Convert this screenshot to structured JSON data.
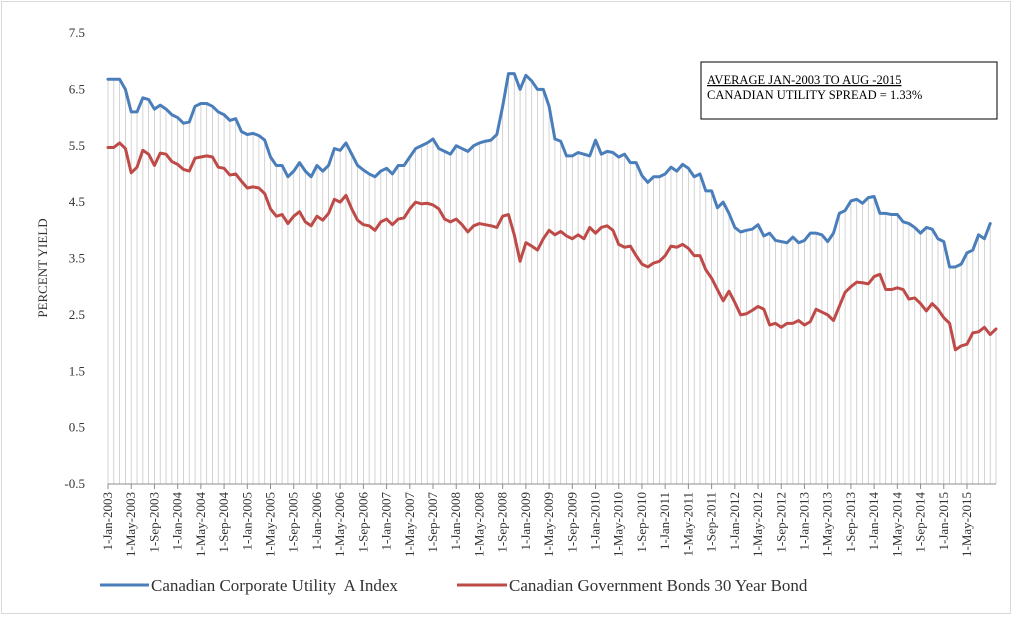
{
  "chart_data": {
    "type": "line",
    "title": "",
    "xlabel": "",
    "ylabel": "PERCENT YIELD",
    "ylim": [
      -0.5,
      7.5
    ],
    "yticks": [
      -0.5,
      0.5,
      1.5,
      2.5,
      3.5,
      4.5,
      5.5,
      6.5,
      7.5
    ],
    "x_start": "2003-01",
    "x_end": "2015-08",
    "x_tick_labels": [
      "1-Jan-2003",
      "1-May-2003",
      "1-Sep-2003",
      "1-Jan-2004",
      "1-May-2004",
      "1-Sep-2004",
      "1-Jan-2005",
      "1-May-2005",
      "1-Sep-2005",
      "1-Jan-2006",
      "1-May-2006",
      "1-Sep-2006",
      "1-Jan-2007",
      "1-May-2007",
      "1-Sep-2007",
      "1-Jan-2008",
      "1-May-2008",
      "1-Sep-2008",
      "1-Jan-2009",
      "1-May-2009",
      "1-Sep-2009",
      "1-Jan-2010",
      "1-May-2010",
      "1-Sep-2010",
      "1-Jan-2011",
      "1-May-2011",
      "1-Sep-2011",
      "1-Jan-2012",
      "1-May-2012",
      "1-Sep-2012",
      "1-Jan-2013",
      "1-May-2013",
      "1-Sep-2013",
      "1-Jan-2014",
      "1-May-2014",
      "1-Sep-2014",
      "1-Jan-2015",
      "1-May-2015"
    ],
    "grid": "vertical monthly drop lines",
    "legend_position": "bottom",
    "annotation": {
      "line1": "AVERAGE JAN-2003 TO AUG -2015",
      "line2": "CANADIAN UTILITY SPREAD = 1.33%"
    },
    "series": [
      {
        "name": "Canadian Corporate Utility  A Index",
        "color": "#4a7ebb",
        "values": [
          6.68,
          6.68,
          6.68,
          6.5,
          6.1,
          6.1,
          6.35,
          6.32,
          6.15,
          6.22,
          6.15,
          6.05,
          6.0,
          5.9,
          5.92,
          6.2,
          6.25,
          6.25,
          6.2,
          6.1,
          6.05,
          5.95,
          5.98,
          5.75,
          5.7,
          5.72,
          5.68,
          5.6,
          5.3,
          5.15,
          5.15,
          4.95,
          5.05,
          5.2,
          5.05,
          4.95,
          5.15,
          5.05,
          5.15,
          5.45,
          5.42,
          5.55,
          5.35,
          5.15,
          5.07,
          5.0,
          4.95,
          5.05,
          5.1,
          5.0,
          5.15,
          5.15,
          5.3,
          5.45,
          5.5,
          5.55,
          5.62,
          5.45,
          5.4,
          5.35,
          5.5,
          5.45,
          5.4,
          5.5,
          5.55,
          5.58,
          5.6,
          5.7,
          6.2,
          6.78,
          6.78,
          6.5,
          6.75,
          6.65,
          6.5,
          6.5,
          6.2,
          5.62,
          5.58,
          5.32,
          5.32,
          5.38,
          5.35,
          5.32,
          5.6,
          5.35,
          5.4,
          5.38,
          5.3,
          5.35,
          5.2,
          5.2,
          4.97,
          4.85,
          4.95,
          4.95,
          5.0,
          5.12,
          5.05,
          5.17,
          5.1,
          4.95,
          5.0,
          4.7,
          4.7,
          4.4,
          4.5,
          4.3,
          4.05,
          3.97,
          4.0,
          4.02,
          4.1,
          3.9,
          3.95,
          3.82,
          3.8,
          3.78,
          3.88,
          3.78,
          3.82,
          3.95,
          3.95,
          3.92,
          3.8,
          3.95,
          4.3,
          4.35,
          4.52,
          4.55,
          4.48,
          4.58,
          4.6,
          4.3,
          4.3,
          4.28,
          4.28,
          4.15,
          4.12,
          4.05,
          3.95,
          4.05,
          4.02,
          3.85,
          3.8,
          3.35,
          3.35,
          3.4,
          3.6,
          3.65,
          3.92,
          3.85,
          4.12
        ]
      },
      {
        "name": "Canadian Government Bonds 30 Year Bond",
        "color": "#be4b48",
        "values": [
          5.47,
          5.47,
          5.55,
          5.45,
          5.02,
          5.12,
          5.42,
          5.35,
          5.15,
          5.37,
          5.35,
          5.22,
          5.17,
          5.08,
          5.05,
          5.28,
          5.3,
          5.32,
          5.3,
          5.12,
          5.1,
          4.98,
          5.0,
          4.87,
          4.75,
          4.77,
          4.75,
          4.65,
          4.38,
          4.25,
          4.28,
          4.12,
          4.25,
          4.33,
          4.15,
          4.08,
          4.25,
          4.18,
          4.3,
          4.55,
          4.5,
          4.62,
          4.38,
          4.18,
          4.1,
          4.08,
          4.0,
          4.15,
          4.2,
          4.1,
          4.2,
          4.22,
          4.38,
          4.5,
          4.47,
          4.48,
          4.45,
          4.38,
          4.2,
          4.15,
          4.2,
          4.1,
          3.97,
          4.08,
          4.12,
          4.1,
          4.08,
          4.05,
          4.25,
          4.28,
          3.92,
          3.45,
          3.78,
          3.72,
          3.65,
          3.85,
          4.0,
          3.92,
          3.98,
          3.9,
          3.85,
          3.92,
          3.85,
          4.05,
          3.95,
          4.05,
          4.08,
          4.0,
          3.75,
          3.7,
          3.72,
          3.55,
          3.4,
          3.35,
          3.42,
          3.45,
          3.55,
          3.72,
          3.7,
          3.75,
          3.68,
          3.55,
          3.55,
          3.3,
          3.15,
          2.95,
          2.75,
          2.92,
          2.72,
          2.5,
          2.52,
          2.58,
          2.65,
          2.6,
          2.32,
          2.35,
          2.28,
          2.35,
          2.35,
          2.4,
          2.32,
          2.38,
          2.6,
          2.55,
          2.5,
          2.4,
          2.65,
          2.9,
          3.0,
          3.08,
          3.07,
          3.05,
          3.18,
          3.22,
          2.95,
          2.95,
          2.98,
          2.95,
          2.78,
          2.8,
          2.7,
          2.57,
          2.7,
          2.6,
          2.45,
          2.35,
          1.88,
          1.95,
          1.98,
          2.18,
          2.2,
          2.28,
          2.15,
          2.25
        ]
      }
    ]
  }
}
